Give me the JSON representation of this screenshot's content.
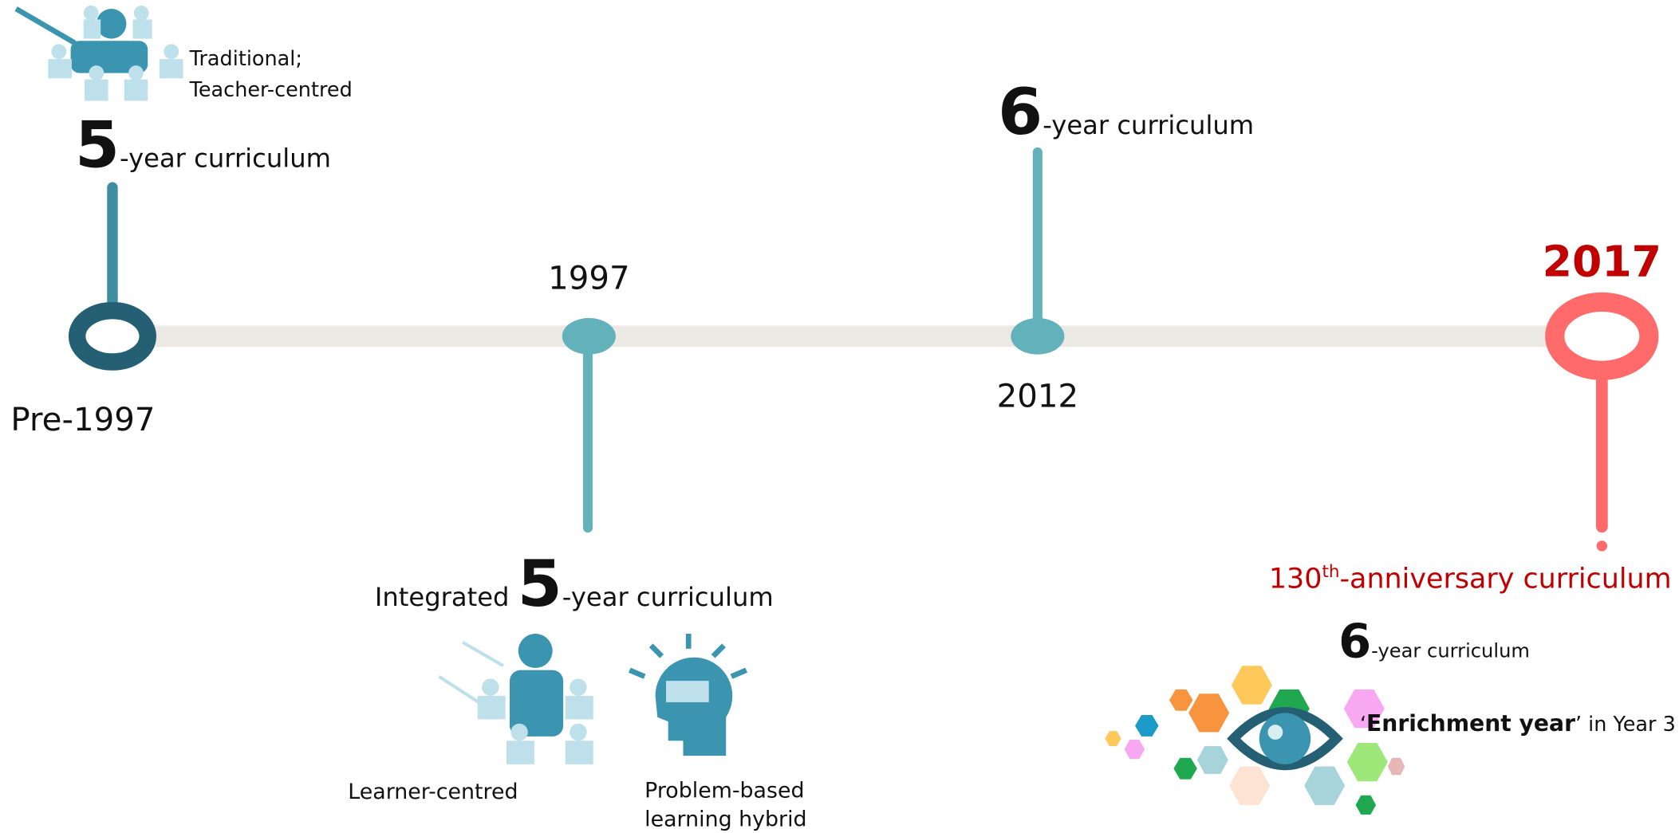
{
  "pre_1997": {
    "note": [
      "Traditional;",
      "Teacher-centred"
    ],
    "number": "5",
    "text": "-year curriculum",
    "year": "Pre-1997"
  },
  "m1997": {
    "year": "1997",
    "prefix": "Integrated ",
    "number": "5",
    "text": "-year curriculum",
    "icons": [
      "Learner-centred",
      [
        "Problem-based",
        "learning hybrid"
      ]
    ]
  },
  "m2012": {
    "number": "6",
    "text": "-year curriculum",
    "year": "2012"
  },
  "m2017": {
    "year": "2017",
    "ordinal": "130",
    "suffix": "th",
    "title": "-anniversary curriculum",
    "number": "6",
    "text": "-year curriculum",
    "quote_open": "‘",
    "bold": "Enrichment year",
    "rest": "’ in Year 3"
  }
}
